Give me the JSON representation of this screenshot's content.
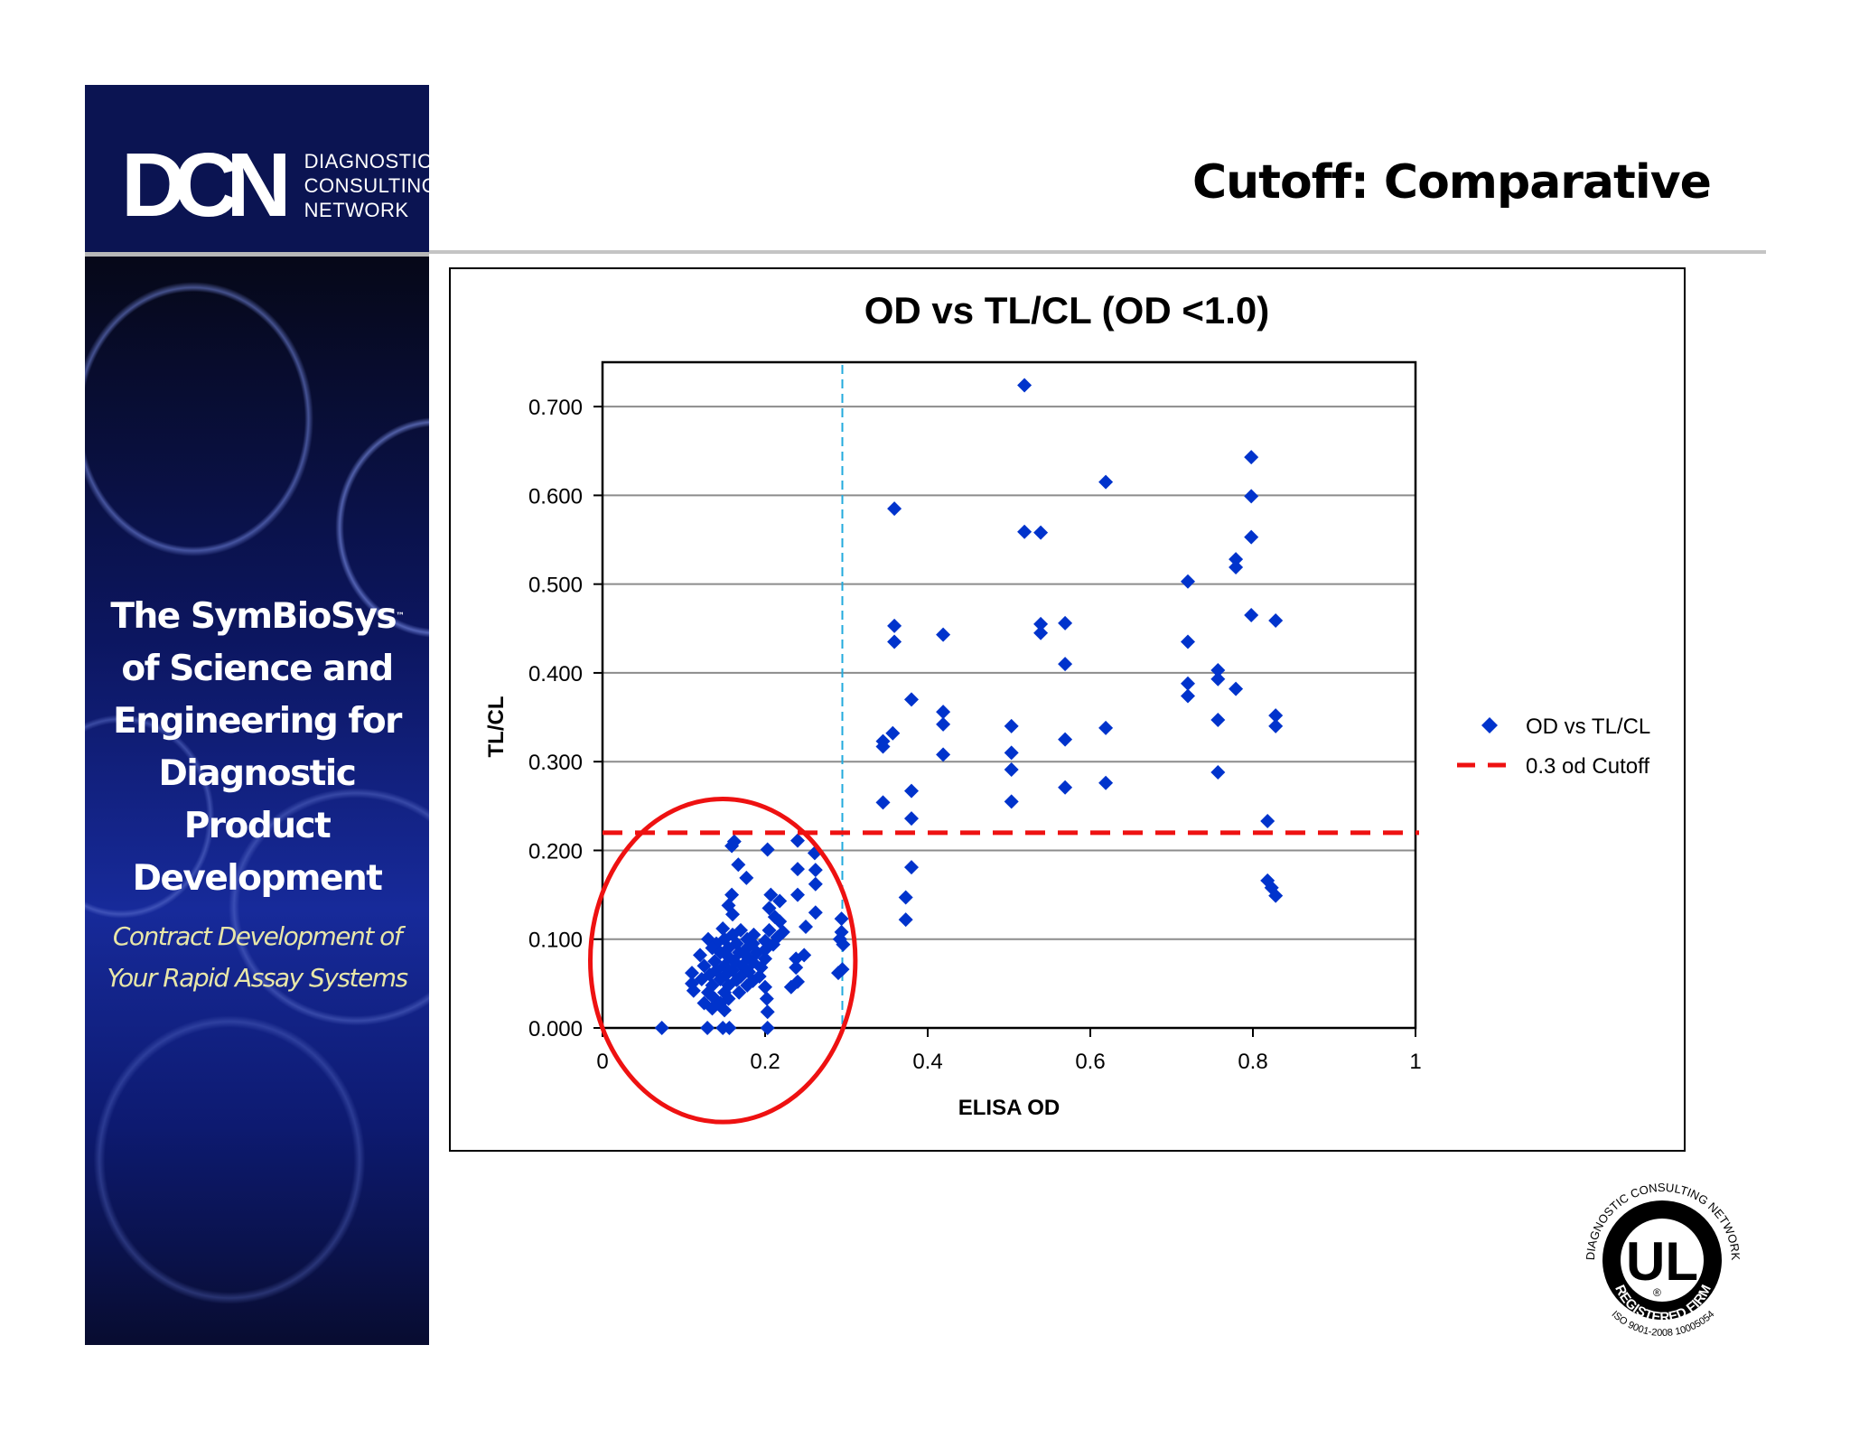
{
  "sidebar": {
    "logo_mark": "DCN",
    "logo_lines": [
      "DIAGNOSTIC",
      "CONSULTING",
      "NETWORK"
    ],
    "tagline_lines": [
      "The SymBioSys",
      "of Science and",
      "Engineering for",
      "Diagnostic  Product",
      "Development"
    ],
    "tagline_trademark": "™",
    "subtag_lines": [
      "Contract Development of",
      "Your Rapid Assay Systems"
    ]
  },
  "header": {
    "title": "Cutoff: Comparative"
  },
  "certification": {
    "top_arc": "DIAGNOSTIC CONSULTING NETWORK",
    "mark": "UL",
    "registered_symbol": "®",
    "band": "REGISTERED FIRM",
    "bottom_arc": "ISO 9001-2008   10005054"
  },
  "colors": {
    "navy": "#0b1452",
    "marker": "#0033cc",
    "cutoff_line": "#ee1111",
    "od_line": "#22aadd",
    "highlight_ellipse": "#ee1111",
    "subtag": "#e8e6a8"
  },
  "chart_data": {
    "type": "scatter",
    "title": "OD vs TL/CL (OD <1.0)",
    "xlabel": "ELISA OD",
    "ylabel": "TL/CL",
    "xlim": [
      0,
      1
    ],
    "ylim": [
      0,
      0.75
    ],
    "x_ticks": [
      "0",
      "0.2",
      "0.4",
      "0.6",
      "0.8",
      "1"
    ],
    "x_tick_values": [
      0,
      0.2,
      0.4,
      0.6,
      0.8,
      1
    ],
    "y_ticks": [
      "0.000",
      "0.100",
      "0.200",
      "0.300",
      "0.400",
      "0.500",
      "0.600",
      "0.700"
    ],
    "y_tick_values": [
      0,
      0.1,
      0.2,
      0.3,
      0.4,
      0.5,
      0.6,
      0.7
    ],
    "grid": "horizontal",
    "legend_position": "right",
    "legend": [
      {
        "label": "OD vs TL/CL",
        "type": "marker"
      },
      {
        "label": "0.3 od Cutoff",
        "type": "dashed-line"
      }
    ],
    "reference_lines": [
      {
        "name": "0.3 od Cutoff",
        "orientation": "horizontal",
        "value": 0.22,
        "style": "dashed",
        "color": "#ee1111"
      },
      {
        "name": "OD 0.3",
        "orientation": "vertical",
        "value": 0.295,
        "style": "dashed",
        "color": "#22aadd"
      }
    ],
    "annotations": [
      {
        "type": "ellipse",
        "cx": 0.148,
        "cy": 0.076,
        "rx": 0.163,
        "ry": 0.182,
        "color": "#ee1111"
      }
    ],
    "series": [
      {
        "name": "OD vs TL/CL",
        "marker": "diamond",
        "color": "#0033cc",
        "points": [
          [
            0.519,
            0.724
          ],
          [
            0.798,
            0.643
          ],
          [
            0.619,
            0.615
          ],
          [
            0.798,
            0.599
          ],
          [
            0.359,
            0.585
          ],
          [
            0.519,
            0.559
          ],
          [
            0.539,
            0.558
          ],
          [
            0.798,
            0.553
          ],
          [
            0.779,
            0.528
          ],
          [
            0.779,
            0.519
          ],
          [
            0.72,
            0.503
          ],
          [
            0.798,
            0.465
          ],
          [
            0.828,
            0.459
          ],
          [
            0.569,
            0.456
          ],
          [
            0.539,
            0.455
          ],
          [
            0.359,
            0.453
          ],
          [
            0.539,
            0.445
          ],
          [
            0.419,
            0.443
          ],
          [
            0.359,
            0.435
          ],
          [
            0.72,
            0.435
          ],
          [
            0.569,
            0.41
          ],
          [
            0.757,
            0.403
          ],
          [
            0.757,
            0.393
          ],
          [
            0.72,
            0.388
          ],
          [
            0.779,
            0.382
          ],
          [
            0.72,
            0.374
          ],
          [
            0.38,
            0.37
          ],
          [
            0.419,
            0.356
          ],
          [
            0.828,
            0.352
          ],
          [
            0.757,
            0.347
          ],
          [
            0.419,
            0.342
          ],
          [
            0.503,
            0.34
          ],
          [
            0.828,
            0.34
          ],
          [
            0.619,
            0.338
          ],
          [
            0.357,
            0.332
          ],
          [
            0.569,
            0.325
          ],
          [
            0.345,
            0.323
          ],
          [
            0.345,
            0.317
          ],
          [
            0.503,
            0.31
          ],
          [
            0.419,
            0.308
          ],
          [
            0.503,
            0.291
          ],
          [
            0.757,
            0.288
          ],
          [
            0.619,
            0.276
          ],
          [
            0.569,
            0.271
          ],
          [
            0.38,
            0.267
          ],
          [
            0.503,
            0.255
          ],
          [
            0.345,
            0.254
          ],
          [
            0.38,
            0.236
          ],
          [
            0.818,
            0.233
          ],
          [
            0.38,
            0.181
          ],
          [
            0.818,
            0.166
          ],
          [
            0.823,
            0.158
          ],
          [
            0.828,
            0.149
          ],
          [
            0.373,
            0.147
          ],
          [
            0.373,
            0.122
          ],
          [
            0.24,
            0.211
          ],
          [
            0.162,
            0.21
          ],
          [
            0.159,
            0.205
          ],
          [
            0.203,
            0.201
          ],
          [
            0.261,
            0.197
          ],
          [
            0.167,
            0.184
          ],
          [
            0.24,
            0.179
          ],
          [
            0.262,
            0.178
          ],
          [
            0.177,
            0.169
          ],
          [
            0.262,
            0.162
          ],
          [
            0.159,
            0.15
          ],
          [
            0.207,
            0.15
          ],
          [
            0.24,
            0.15
          ],
          [
            0.218,
            0.143
          ],
          [
            0.155,
            0.138
          ],
          [
            0.205,
            0.135
          ],
          [
            0.262,
            0.13
          ],
          [
            0.16,
            0.128
          ],
          [
            0.212,
            0.125
          ],
          [
            0.294,
            0.123
          ],
          [
            0.218,
            0.12
          ],
          [
            0.25,
            0.114
          ],
          [
            0.148,
            0.112
          ],
          [
            0.17,
            0.11
          ],
          [
            0.205,
            0.11
          ],
          [
            0.222,
            0.108
          ],
          [
            0.294,
            0.108
          ],
          [
            0.16,
            0.105
          ],
          [
            0.186,
            0.105
          ],
          [
            0.215,
            0.102
          ],
          [
            0.13,
            0.1
          ],
          [
            0.15,
            0.1
          ],
          [
            0.178,
            0.1
          ],
          [
            0.292,
            0.1
          ],
          [
            0.2,
            0.098
          ],
          [
            0.14,
            0.095
          ],
          [
            0.165,
            0.095
          ],
          [
            0.185,
            0.095
          ],
          [
            0.21,
            0.094
          ],
          [
            0.296,
            0.094
          ],
          [
            0.135,
            0.09
          ],
          [
            0.155,
            0.09
          ],
          [
            0.178,
            0.09
          ],
          [
            0.2,
            0.088
          ],
          [
            0.145,
            0.085
          ],
          [
            0.168,
            0.085
          ],
          [
            0.19,
            0.085
          ],
          [
            0.12,
            0.082
          ],
          [
            0.248,
            0.082
          ],
          [
            0.155,
            0.08
          ],
          [
            0.178,
            0.08
          ],
          [
            0.2,
            0.078
          ],
          [
            0.238,
            0.078
          ],
          [
            0.138,
            0.075
          ],
          [
            0.162,
            0.075
          ],
          [
            0.185,
            0.074
          ],
          [
            0.125,
            0.07
          ],
          [
            0.15,
            0.07
          ],
          [
            0.172,
            0.07
          ],
          [
            0.195,
            0.068
          ],
          [
            0.238,
            0.068
          ],
          [
            0.14,
            0.065
          ],
          [
            0.16,
            0.065
          ],
          [
            0.18,
            0.063
          ],
          [
            0.11,
            0.062
          ],
          [
            0.132,
            0.06
          ],
          [
            0.152,
            0.06
          ],
          [
            0.17,
            0.058
          ],
          [
            0.193,
            0.058
          ],
          [
            0.29,
            0.062
          ],
          [
            0.295,
            0.066
          ],
          [
            0.122,
            0.055
          ],
          [
            0.145,
            0.055
          ],
          [
            0.165,
            0.054
          ],
          [
            0.185,
            0.053
          ],
          [
            0.24,
            0.052
          ],
          [
            0.11,
            0.05
          ],
          [
            0.135,
            0.048
          ],
          [
            0.155,
            0.048
          ],
          [
            0.178,
            0.048
          ],
          [
            0.2,
            0.046
          ],
          [
            0.232,
            0.046
          ],
          [
            0.112,
            0.042
          ],
          [
            0.13,
            0.04
          ],
          [
            0.15,
            0.04
          ],
          [
            0.168,
            0.04
          ],
          [
            0.138,
            0.033
          ],
          [
            0.155,
            0.033
          ],
          [
            0.202,
            0.033
          ],
          [
            0.125,
            0.028
          ],
          [
            0.145,
            0.028
          ],
          [
            0.135,
            0.022
          ],
          [
            0.15,
            0.02
          ],
          [
            0.203,
            0.018
          ],
          [
            0.073,
            0.0
          ],
          [
            0.129,
            0.0
          ],
          [
            0.148,
            0.0
          ],
          [
            0.156,
            0.0
          ],
          [
            0.203,
            0.0
          ]
        ]
      }
    ]
  }
}
